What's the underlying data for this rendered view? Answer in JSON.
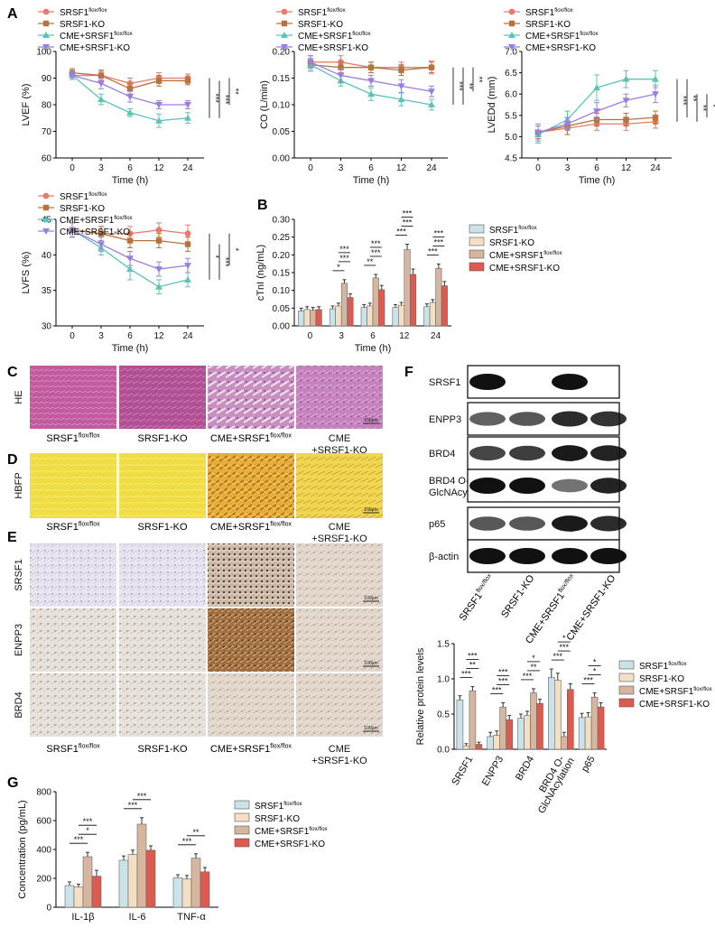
{
  "colors": {
    "flox": "#e67c6c",
    "ko": "#b8733d",
    "cme_flox": "#5cc3b6",
    "cme_ko": "#9a7fe0",
    "bar_flox": "#c9e3e8",
    "bar_ko": "#f3dfc3",
    "bar_cme_flox": "#d7b6a0",
    "bar_cme_ko": "#dc5a4f"
  },
  "legend": {
    "items": [
      {
        "base": "SRSF1",
        "sup": "flox/flox"
      },
      {
        "base": "SRSF1-KO",
        "sup": ""
      },
      {
        "base": "CME+SRSF1",
        "sup": "flox/flox"
      },
      {
        "base": "CME+SRSF1-KO",
        "sup": ""
      }
    ]
  },
  "panels": {
    "A": "A",
    "B": "B",
    "C": "C",
    "D": "D",
    "E": "E",
    "F": "F",
    "G": "G"
  },
  "chart_data": [
    {
      "id": "lvef",
      "type": "line",
      "ylabel": "LVEF (%)",
      "xlabel": "Time (h)",
      "x": [
        0,
        3,
        6,
        12,
        24
      ],
      "ylim": [
        60,
        100
      ],
      "yticks": [
        60,
        70,
        80,
        90,
        100
      ],
      "series": [
        {
          "name": "SRSF1 flox/flox",
          "values": [
            91,
            91,
            88,
            90,
            90
          ],
          "err": [
            1.5,
            1.5,
            2,
            2,
            1.5
          ]
        },
        {
          "name": "SRSF1-KO",
          "values": [
            92,
            91,
            86,
            89,
            89
          ],
          "err": [
            1.5,
            2,
            2,
            2,
            1.5
          ]
        },
        {
          "name": "CME+SRSF1 flox/flox",
          "values": [
            91,
            82,
            77,
            74,
            75
          ],
          "err": [
            1.5,
            2,
            1.5,
            2.5,
            2
          ]
        },
        {
          "name": "CME+SRSF1-KO",
          "values": [
            91,
            88,
            83,
            80,
            80
          ],
          "err": [
            1.5,
            2,
            2,
            1.5,
            1.5
          ]
        }
      ],
      "sig": [
        "***",
        "***",
        "**"
      ]
    },
    {
      "id": "co",
      "type": "line",
      "ylabel": "CO (L/min)",
      "xlabel": "Time (h)",
      "x": [
        0,
        3,
        6,
        12,
        24
      ],
      "ylim": [
        0,
        0.2
      ],
      "yticks": [
        0.0,
        0.05,
        0.1,
        0.15,
        0.2
      ],
      "ytick_labels": [
        "0.00",
        "0.05",
        "0.10",
        "0.15",
        "0.20"
      ],
      "series": [
        {
          "name": "SRSF1 flox/flox",
          "values": [
            0.18,
            0.18,
            0.17,
            0.17,
            0.17
          ],
          "err": [
            0.012,
            0.012,
            0.01,
            0.01,
            0.012
          ]
        },
        {
          "name": "SRSF1-KO",
          "values": [
            0.175,
            0.17,
            0.17,
            0.165,
            0.17
          ],
          "err": [
            0.012,
            0.01,
            0.01,
            0.01,
            0.01
          ]
        },
        {
          "name": "CME+SRSF1 flox/flox",
          "values": [
            0.175,
            0.145,
            0.12,
            0.11,
            0.1
          ],
          "err": [
            0.012,
            0.01,
            0.012,
            0.012,
            0.01
          ]
        },
        {
          "name": "CME+SRSF1-KO",
          "values": [
            0.18,
            0.155,
            0.145,
            0.135,
            0.125
          ],
          "err": [
            0.012,
            0.012,
            0.01,
            0.012,
            0.01
          ]
        }
      ],
      "sig": [
        "***",
        "**",
        "**"
      ]
    },
    {
      "id": "lvedd",
      "type": "line",
      "ylabel": "LVEDd (mm)",
      "xlabel": "Time (h)",
      "x": [
        0,
        3,
        6,
        12,
        24
      ],
      "ylim": [
        4.5,
        7.0
      ],
      "yticks": [
        4.5,
        5.0,
        5.5,
        6.0,
        6.5,
        7.0
      ],
      "ytick_labels": [
        "4.5",
        "5.0",
        "5.5",
        "6.0",
        "6.5",
        "7.0"
      ],
      "series": [
        {
          "name": "SRSF1 flox/flox",
          "values": [
            5.1,
            5.2,
            5.3,
            5.3,
            5.35
          ],
          "err": [
            0.15,
            0.15,
            0.15,
            0.15,
            0.15
          ]
        },
        {
          "name": "SRSF1-KO",
          "values": [
            5.1,
            5.25,
            5.4,
            5.4,
            5.45
          ],
          "err": [
            0.15,
            0.2,
            0.15,
            0.15,
            0.15
          ]
        },
        {
          "name": "CME+SRSF1 flox/flox",
          "values": [
            5.05,
            5.4,
            6.15,
            6.35,
            6.35
          ],
          "err": [
            0.2,
            0.2,
            0.3,
            0.2,
            0.2
          ]
        },
        {
          "name": "CME+SRSF1-KO",
          "values": [
            5.1,
            5.3,
            5.6,
            5.85,
            6.0
          ],
          "err": [
            0.2,
            0.15,
            0.2,
            0.15,
            0.2
          ]
        }
      ],
      "sig": [
        "***",
        "**",
        "**",
        "*"
      ]
    },
    {
      "id": "lvfs",
      "type": "line",
      "ylabel": "LVFS (%)",
      "xlabel": "Time (h)",
      "x": [
        0,
        3,
        6,
        12,
        24
      ],
      "ylim": [
        30,
        45
      ],
      "yticks": [
        30,
        35,
        40,
        45
      ],
      "series": [
        {
          "name": "SRSF1 flox/flox",
          "values": [
            43.5,
            43,
            43,
            43.5,
            43
          ],
          "err": [
            1,
            1,
            1,
            1,
            1.2
          ]
        },
        {
          "name": "SRSF1-KO",
          "values": [
            43.5,
            43,
            42,
            42,
            41.5
          ],
          "err": [
            1,
            1,
            1,
            1,
            1
          ]
        },
        {
          "name": "CME+SRSF1 flox/flox",
          "values": [
            43.5,
            41,
            38,
            35.5,
            36.5
          ],
          "err": [
            1,
            1,
            1.5,
            1,
            1
          ]
        },
        {
          "name": "CME+SRSF1-KO",
          "values": [
            43.5,
            41.5,
            39.5,
            38,
            38.5
          ],
          "err": [
            1,
            1,
            1,
            1,
            1
          ]
        }
      ],
      "sig": [
        "*",
        "***",
        "*"
      ]
    },
    {
      "id": "ctni",
      "type": "bar",
      "ylabel": "cTnI (ng/mL)",
      "xlabel": "Time (h)",
      "categories": [
        "0",
        "3",
        "6",
        "12",
        "24"
      ],
      "ylim": [
        0,
        0.3
      ],
      "yticks": [
        0.0,
        0.05,
        0.1,
        0.15,
        0.2,
        0.25,
        0.3
      ],
      "ytick_labels": [
        "0.00",
        "0.05",
        "0.10",
        "0.15",
        "0.20",
        "0.25",
        "0.30"
      ],
      "series": [
        {
          "name": "SRSF1 flox/flox",
          "values": [
            0.042,
            0.048,
            0.052,
            0.052,
            0.054
          ],
          "err": [
            0.008,
            0.008,
            0.008,
            0.008,
            0.008
          ]
        },
        {
          "name": "SRSF1-KO",
          "values": [
            0.046,
            0.056,
            0.056,
            0.058,
            0.066
          ],
          "err": [
            0.008,
            0.008,
            0.008,
            0.008,
            0.008
          ]
        },
        {
          "name": "CME+SRSF1 flox/flox",
          "values": [
            0.044,
            0.12,
            0.135,
            0.215,
            0.162
          ],
          "err": [
            0.008,
            0.01,
            0.01,
            0.015,
            0.012
          ]
        },
        {
          "name": "CME+SRSF1-KO",
          "values": [
            0.046,
            0.08,
            0.102,
            0.145,
            0.113
          ],
          "err": [
            0.008,
            0.01,
            0.012,
            0.015,
            0.012
          ]
        }
      ],
      "sig_groups": [
        {
          "cat": 1,
          "marks": [
            "*",
            "***",
            "***"
          ]
        },
        {
          "cat": 2,
          "marks": [
            "**",
            "***",
            "***"
          ]
        },
        {
          "cat": 3,
          "marks": [
            "***",
            "***",
            "***"
          ]
        },
        {
          "cat": 4,
          "marks": [
            "***",
            "***",
            "***"
          ]
        }
      ]
    },
    {
      "id": "protein",
      "type": "bar",
      "ylabel": "Relative protein levels",
      "xlabel": "",
      "categories": [
        "SRSF1",
        "ENPP3",
        "BRD4",
        "BRD4 O-GlcNAcylation",
        "p65"
      ],
      "ylim": [
        0,
        1.5
      ],
      "yticks": [
        0.0,
        0.5,
        1.0,
        1.5
      ],
      "ytick_labels": [
        "0.0",
        "0.5",
        "1.0",
        "1.5"
      ],
      "series": [
        {
          "name": "SRSF1 flox/flox",
          "values": [
            0.7,
            0.18,
            0.44,
            1.02,
            0.45
          ],
          "err": [
            0.06,
            0.06,
            0.06,
            0.12,
            0.06
          ]
        },
        {
          "name": "SRSF1-KO",
          "values": [
            0.05,
            0.2,
            0.48,
            0.98,
            0.46
          ],
          "err": [
            0.03,
            0.06,
            0.06,
            0.1,
            0.06
          ]
        },
        {
          "name": "CME+SRSF1 flox/flox",
          "values": [
            0.83,
            0.6,
            0.8,
            0.18,
            0.74
          ],
          "err": [
            0.06,
            0.06,
            0.06,
            0.06,
            0.06
          ]
        },
        {
          "name": "CME+SRSF1-KO",
          "values": [
            0.07,
            0.42,
            0.65,
            0.85,
            0.6
          ],
          "err": [
            0.03,
            0.06,
            0.06,
            0.08,
            0.06
          ]
        }
      ],
      "sig_groups": [
        {
          "cat": 0,
          "marks": [
            "***",
            "**",
            "***"
          ]
        },
        {
          "cat": 1,
          "marks": [
            "***",
            "***",
            "***"
          ]
        },
        {
          "cat": 2,
          "marks": [
            "***",
            "**",
            "*"
          ]
        },
        {
          "cat": 3,
          "marks": [
            "***",
            "***",
            "*"
          ]
        },
        {
          "cat": 4,
          "marks": [
            "***",
            "*",
            "*"
          ]
        }
      ]
    },
    {
      "id": "cytokine",
      "type": "bar",
      "ylabel": "Concentration (pg/mL)",
      "xlabel": "",
      "categories": [
        "IL-1β",
        "IL-6",
        "TNF-α"
      ],
      "ylim": [
        0,
        800
      ],
      "yticks": [
        0,
        200,
        400,
        600,
        800
      ],
      "ytick_labels": [
        "0",
        "200",
        "400",
        "600",
        "800"
      ],
      "series": [
        {
          "name": "SRSF1 flox/flox",
          "values": [
            150,
            325,
            205
          ],
          "err": [
            25,
            30,
            20
          ]
        },
        {
          "name": "SRSF1-KO",
          "values": [
            140,
            365,
            195
          ],
          "err": [
            20,
            30,
            25
          ]
        },
        {
          "name": "CME+SRSF1 flox/flox",
          "values": [
            350,
            575,
            340
          ],
          "err": [
            30,
            45,
            30
          ]
        },
        {
          "name": "CME+SRSF1-KO",
          "values": [
            215,
            395,
            245
          ],
          "err": [
            40,
            30,
            30
          ]
        }
      ],
      "sig_groups": [
        {
          "cat": 0,
          "marks": [
            "***",
            "*",
            "***"
          ]
        },
        {
          "cat": 1,
          "marks": [
            "***",
            "***"
          ]
        },
        {
          "cat": 2,
          "marks": [
            "***",
            "**"
          ]
        }
      ]
    }
  ],
  "histology": {
    "he_label": "HE",
    "hbfp_label": "HBFP",
    "ihc_rows": [
      "SRSF1",
      "ENPP3",
      "BRD4"
    ],
    "scale_bar": "100μm",
    "captions": [
      {
        "base": "SRSF1",
        "sup": "flox/flox"
      },
      {
        "base": "SRSF1-KO",
        "sup": ""
      },
      {
        "base": "CME+SRSF1",
        "sup": "flox/flox"
      },
      {
        "line1": "CME",
        "line2": "+SRSF1-KO"
      }
    ]
  },
  "western": {
    "rows": [
      "SRSF1",
      "ENPP3",
      "BRD4",
      "BRD4 O-\nGlcNAcylation",
      "p65",
      "β-actin"
    ],
    "lanes": [
      {
        "base": "SRSF1",
        "sup": "flox/flox"
      },
      {
        "base": "SRSF1-KO",
        "sup": ""
      },
      {
        "base": "CME+SRSF1",
        "sup": "flox/flox"
      },
      {
        "base": "CME+SRSF1-KO",
        "sup": ""
      }
    ]
  }
}
